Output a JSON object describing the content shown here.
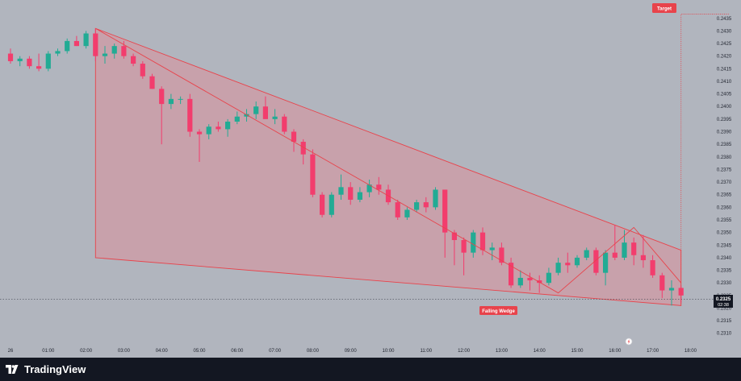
{
  "app": {
    "brand": "TradingView",
    "logo_icon": "tradingview-logo-icon"
  },
  "colors": {
    "background": "#b1b5be",
    "up": "#22ab94",
    "down": "#f23d6d",
    "pattern_line": "#e8434b",
    "pattern_fill": "#e58a95",
    "label_bg": "#e8434b",
    "footer": "#131722"
  },
  "chart_data": {
    "type": "candlestick",
    "symbol": "",
    "x_tick_labels": [
      "26",
      "01:00",
      "02:00",
      "03:00",
      "04:00",
      "05:00",
      "06:00",
      "07:00",
      "08:00",
      "09:00",
      "10:00",
      "11:00",
      "12:00",
      "13:00",
      "14:00",
      "15:00",
      "16:00",
      "17:00",
      "18:00"
    ],
    "y_tick_labels": [
      "0.2435",
      "0.2430",
      "0.2425",
      "0.2420",
      "0.2415",
      "0.2410",
      "0.2405",
      "0.2400",
      "0.2395",
      "0.2390",
      "0.2385",
      "0.2380",
      "0.2375",
      "0.2370",
      "0.2365",
      "0.2360",
      "0.2355",
      "0.2350",
      "0.2345",
      "0.2340",
      "0.2335",
      "0.2330",
      "0.2325",
      "0.2320",
      "0.2315",
      "0.2310"
    ],
    "ylim": [
      0.2308,
      0.2437
    ],
    "x_start_hour": 0,
    "minutes_per_bar": 15,
    "candles": [
      [
        0.2421,
        0.2423,
        0.2417,
        0.2418
      ],
      [
        0.2418,
        0.242,
        0.2416,
        0.2419
      ],
      [
        0.2419,
        0.242,
        0.2415,
        0.2416
      ],
      [
        0.2416,
        0.2421,
        0.2414,
        0.2415
      ],
      [
        0.2415,
        0.2422,
        0.2414,
        0.2421
      ],
      [
        0.2421,
        0.2423,
        0.242,
        0.2422
      ],
      [
        0.2422,
        0.2427,
        0.2421,
        0.2426
      ],
      [
        0.2426,
        0.2428,
        0.2424,
        0.2424
      ],
      [
        0.2424,
        0.243,
        0.2423,
        0.2429
      ],
      [
        0.2429,
        0.2431,
        0.2418,
        0.242
      ],
      [
        0.242,
        0.2424,
        0.2417,
        0.2421
      ],
      [
        0.2421,
        0.2425,
        0.2419,
        0.2424
      ],
      [
        0.2424,
        0.2426,
        0.2419,
        0.242
      ],
      [
        0.242,
        0.2421,
        0.2416,
        0.2417
      ],
      [
        0.2417,
        0.2418,
        0.2411,
        0.2412
      ],
      [
        0.2412,
        0.2413,
        0.2407,
        0.2407
      ],
      [
        0.2407,
        0.2408,
        0.2385,
        0.2401
      ],
      [
        0.2401,
        0.2405,
        0.2399,
        0.2403
      ],
      [
        0.2403,
        0.2404,
        0.2401,
        0.2403
      ],
      [
        0.2403,
        0.2405,
        0.2388,
        0.239
      ],
      [
        0.239,
        0.2391,
        0.2378,
        0.2389
      ],
      [
        0.2389,
        0.2393,
        0.2387,
        0.2392
      ],
      [
        0.2392,
        0.2394,
        0.239,
        0.2391
      ],
      [
        0.2391,
        0.2395,
        0.2388,
        0.2394
      ],
      [
        0.2394,
        0.2398,
        0.2393,
        0.2396
      ],
      [
        0.2396,
        0.2399,
        0.2394,
        0.2397
      ],
      [
        0.2397,
        0.2402,
        0.2395,
        0.24
      ],
      [
        0.24,
        0.2404,
        0.2396,
        0.2395
      ],
      [
        0.2395,
        0.2399,
        0.2393,
        0.2396
      ],
      [
        0.2396,
        0.2397,
        0.2389,
        0.239
      ],
      [
        0.239,
        0.2391,
        0.2382,
        0.2386
      ],
      [
        0.2386,
        0.2387,
        0.2377,
        0.2381
      ],
      [
        0.2381,
        0.2383,
        0.2364,
        0.2365
      ],
      [
        0.2365,
        0.2366,
        0.2356,
        0.2357
      ],
      [
        0.2357,
        0.2366,
        0.2356,
        0.2365
      ],
      [
        0.2365,
        0.2373,
        0.2363,
        0.2368
      ],
      [
        0.2368,
        0.237,
        0.2361,
        0.2363
      ],
      [
        0.2363,
        0.2368,
        0.2362,
        0.2366
      ],
      [
        0.2366,
        0.2371,
        0.2364,
        0.2369
      ],
      [
        0.2369,
        0.2372,
        0.2365,
        0.2367
      ],
      [
        0.2367,
        0.2369,
        0.2361,
        0.2362
      ],
      [
        0.2362,
        0.2363,
        0.2355,
        0.2356
      ],
      [
        0.2356,
        0.236,
        0.2355,
        0.2359
      ],
      [
        0.2359,
        0.2363,
        0.2358,
        0.2362
      ],
      [
        0.2362,
        0.2364,
        0.2358,
        0.236
      ],
      [
        0.236,
        0.2368,
        0.2359,
        0.2367
      ],
      [
        0.2367,
        0.2367,
        0.234,
        0.235
      ],
      [
        0.235,
        0.2351,
        0.2337,
        0.2347
      ],
      [
        0.2347,
        0.2348,
        0.2333,
        0.2342
      ],
      [
        0.2342,
        0.2351,
        0.234,
        0.235
      ],
      [
        0.235,
        0.2352,
        0.2341,
        0.2343
      ],
      [
        0.2343,
        0.2346,
        0.2339,
        0.2344
      ],
      [
        0.2344,
        0.2346,
        0.2337,
        0.2338
      ],
      [
        0.2338,
        0.234,
        0.2328,
        0.2329
      ],
      [
        0.2329,
        0.2335,
        0.2328,
        0.2332
      ],
      [
        0.2332,
        0.2334,
        0.2327,
        0.2331
      ],
      [
        0.2331,
        0.2333,
        0.2326,
        0.233
      ],
      [
        0.233,
        0.2336,
        0.2329,
        0.2334
      ],
      [
        0.2334,
        0.234,
        0.2333,
        0.2338
      ],
      [
        0.2338,
        0.2342,
        0.2334,
        0.2337
      ],
      [
        0.2337,
        0.2341,
        0.2336,
        0.234
      ],
      [
        0.234,
        0.2344,
        0.2339,
        0.2343
      ],
      [
        0.2343,
        0.2344,
        0.2333,
        0.2334
      ],
      [
        0.2334,
        0.2343,
        0.2329,
        0.2342
      ],
      [
        0.2342,
        0.2353,
        0.2339,
        0.234
      ],
      [
        0.234,
        0.2351,
        0.2339,
        0.2346
      ],
      [
        0.2346,
        0.2348,
        0.2337,
        0.2341
      ],
      [
        0.2341,
        0.2349,
        0.2336,
        0.2339
      ],
      [
        0.2339,
        0.2341,
        0.2332,
        0.2333
      ],
      [
        0.2333,
        0.2334,
        0.2324,
        0.2327
      ],
      [
        0.2327,
        0.2331,
        0.2321,
        0.2328
      ],
      [
        0.2328,
        0.2329,
        0.2322,
        0.2325
      ]
    ],
    "annotations": {
      "pattern_label": "Falling Wedge",
      "target_label": "Target",
      "last_price": "0.2325",
      "countdown": "02:38"
    }
  }
}
